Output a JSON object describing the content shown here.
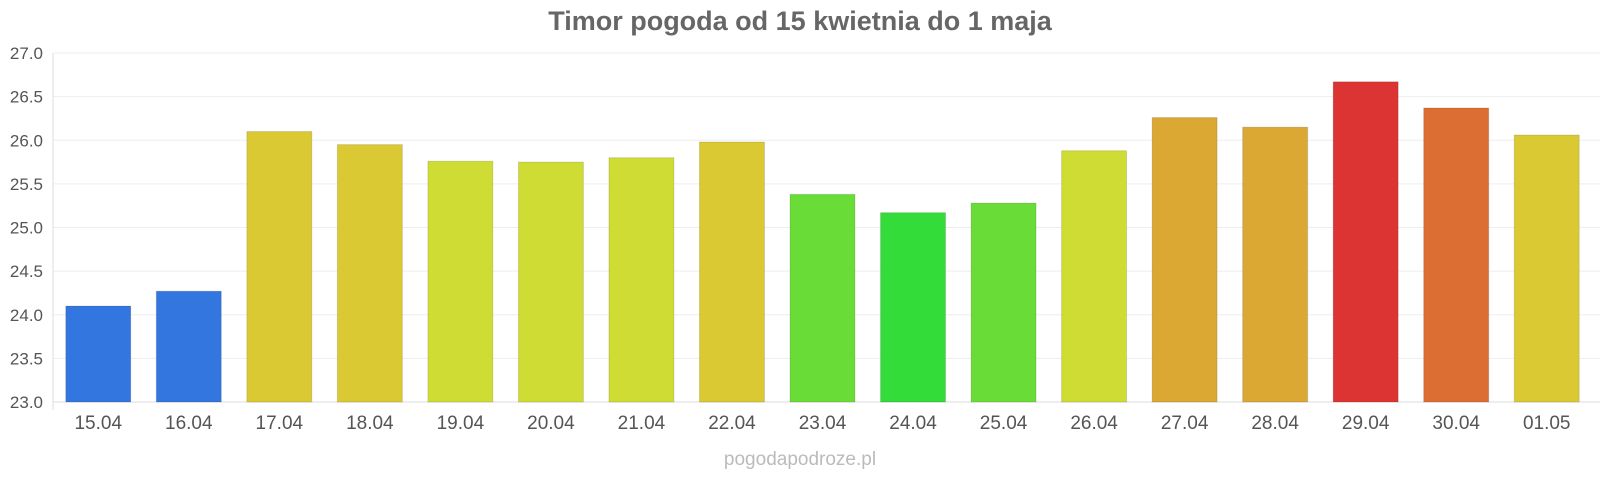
{
  "chart_data": {
    "type": "bar",
    "title": "Timor pogoda od 15 kwietnia do 1 maja",
    "xlabel": "",
    "ylabel": "",
    "categories": [
      "15.04",
      "16.04",
      "17.04",
      "18.04",
      "19.04",
      "20.04",
      "21.04",
      "22.04",
      "23.04",
      "24.04",
      "25.04",
      "26.04",
      "27.04",
      "28.04",
      "29.04",
      "30.04",
      "01.05"
    ],
    "values": [
      24.1,
      24.27,
      26.1,
      25.95,
      25.76,
      25.75,
      25.8,
      25.98,
      25.38,
      25.17,
      25.28,
      25.88,
      26.26,
      26.15,
      26.67,
      26.37,
      26.06
    ],
    "colors": [
      "#3476e0",
      "#3476e0",
      "#dbc933",
      "#dbc933",
      "#cfdc33",
      "#cfdc33",
      "#cfdc33",
      "#dbc933",
      "#6adc37",
      "#33dc38",
      "#6adc37",
      "#cfdc33",
      "#dba833",
      "#dba833",
      "#dc3433",
      "#dd6e33",
      "#dbc933"
    ],
    "ylim": [
      23.0,
      27.0
    ],
    "yticks": [
      "23.0",
      "23.5",
      "24.0",
      "24.5",
      "25.0",
      "25.5",
      "26.0",
      "26.5",
      "27.0"
    ],
    "grid": true,
    "legend": "none"
  },
  "watermark": "pogodapodroze.pl"
}
